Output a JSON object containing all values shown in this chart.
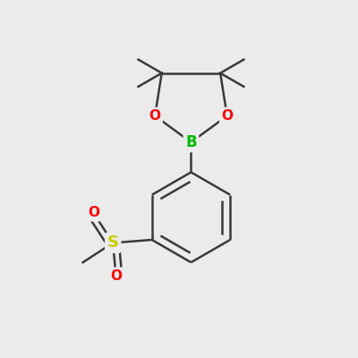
{
  "background_color": "#ebebeb",
  "bond_color": "#3a3a3a",
  "bond_width": 1.8,
  "atom_colors": {
    "B": "#00bb00",
    "O": "#ff0000",
    "S": "#cccc00",
    "C": "#3a3a3a"
  },
  "fig_size": [
    4.0,
    4.0
  ],
  "dpi": 100
}
